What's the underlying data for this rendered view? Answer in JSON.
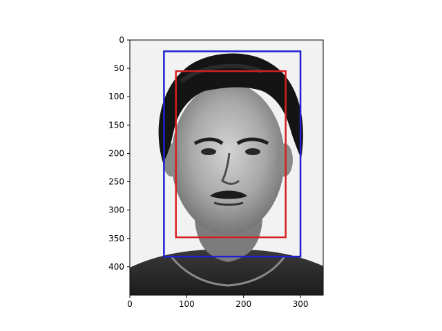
{
  "axes": {
    "image_width": 340,
    "image_height": 450,
    "x_ticks": [
      0,
      100,
      200,
      300
    ],
    "y_ticks": [
      0,
      50,
      100,
      150,
      200,
      250,
      300,
      350,
      400
    ],
    "x_range": [
      0,
      340
    ],
    "y_range": [
      0,
      450
    ],
    "y_inverted": true
  },
  "boxes": [
    {
      "name": "outer-box",
      "color": "#1f1fd0",
      "x_min": 60,
      "y_min": 20,
      "x_max": 300,
      "y_max": 382
    },
    {
      "name": "inner-box",
      "color": "#d62020",
      "x_min": 81,
      "y_min": 55,
      "x_max": 274,
      "y_max": 348
    }
  ],
  "photo": {
    "subject": "grayscale portrait of a man with dark curly hair and mustache, plain light background"
  }
}
